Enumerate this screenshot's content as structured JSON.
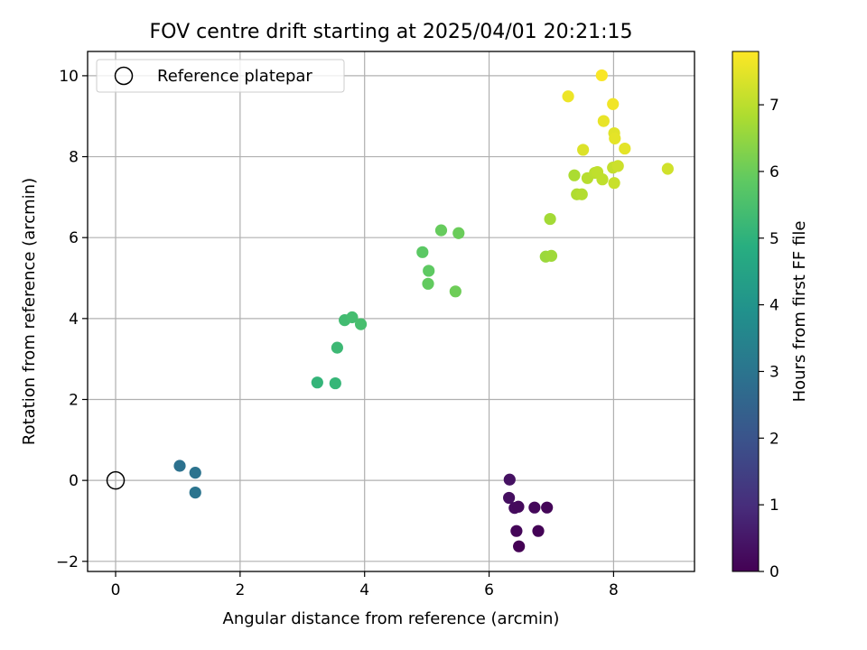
{
  "chart_data": {
    "type": "scatter",
    "title": "FOV centre drift starting at 2025/04/01 20:21:15",
    "xlabel": "Angular distance from reference (arcmin)",
    "ylabel": "Rotation from reference (arcmin)",
    "xlim": [
      -0.45,
      9.3
    ],
    "ylim": [
      -2.25,
      10.6
    ],
    "x_ticks": [
      0,
      2,
      4,
      6,
      8
    ],
    "y_ticks": [
      -2,
      0,
      2,
      4,
      6,
      8,
      10
    ],
    "grid": true,
    "legend": {
      "position": "top-left",
      "entries": [
        "Reference platepar"
      ]
    },
    "reference": {
      "name": "Reference platepar",
      "x": 0,
      "y": 0
    },
    "colorbar": {
      "label": "Hours from first FF file",
      "colormap": "viridis",
      "range": [
        0,
        7.8
      ],
      "ticks": [
        0,
        1,
        2,
        3,
        4,
        5,
        6,
        7
      ]
    },
    "points": [
      {
        "x": 6.33,
        "y": 0.02,
        "hours": 0.35
      },
      {
        "x": 6.32,
        "y": -0.43,
        "hours": 0.3
      },
      {
        "x": 6.41,
        "y": -0.68,
        "hours": 0.25
      },
      {
        "x": 6.47,
        "y": -0.65,
        "hours": 0.2
      },
      {
        "x": 6.73,
        "y": -0.67,
        "hours": 0.15
      },
      {
        "x": 6.93,
        "y": -0.67,
        "hours": 0.1
      },
      {
        "x": 6.44,
        "y": -1.25,
        "hours": 0.1
      },
      {
        "x": 6.79,
        "y": -1.25,
        "hours": 0.05
      },
      {
        "x": 6.48,
        "y": -1.63,
        "hours": 0.0
      },
      {
        "x": 1.03,
        "y": 0.36,
        "hours": 2.9
      },
      {
        "x": 1.28,
        "y": 0.19,
        "hours": 2.95
      },
      {
        "x": 1.28,
        "y": -0.3,
        "hours": 3.0
      },
      {
        "x": 3.24,
        "y": 2.42,
        "hours": 5.1
      },
      {
        "x": 3.53,
        "y": 2.4,
        "hours": 5.15
      },
      {
        "x": 3.56,
        "y": 3.28,
        "hours": 5.25
      },
      {
        "x": 3.68,
        "y": 3.96,
        "hours": 5.35
      },
      {
        "x": 3.8,
        "y": 4.03,
        "hours": 5.4
      },
      {
        "x": 3.94,
        "y": 3.86,
        "hours": 5.45
      },
      {
        "x": 4.93,
        "y": 5.64,
        "hours": 5.8
      },
      {
        "x": 5.03,
        "y": 5.18,
        "hours": 5.85
      },
      {
        "x": 5.02,
        "y": 4.86,
        "hours": 5.9
      },
      {
        "x": 5.23,
        "y": 6.18,
        "hours": 5.95
      },
      {
        "x": 5.51,
        "y": 6.11,
        "hours": 6.0
      },
      {
        "x": 5.46,
        "y": 4.67,
        "hours": 6.05
      },
      {
        "x": 6.91,
        "y": 5.53,
        "hours": 6.6
      },
      {
        "x": 7.0,
        "y": 5.55,
        "hours": 6.65
      },
      {
        "x": 6.98,
        "y": 6.46,
        "hours": 6.7
      },
      {
        "x": 7.37,
        "y": 7.54,
        "hours": 6.8
      },
      {
        "x": 7.41,
        "y": 7.07,
        "hours": 6.85
      },
      {
        "x": 7.49,
        "y": 7.07,
        "hours": 6.9
      },
      {
        "x": 7.58,
        "y": 7.47,
        "hours": 6.95
      },
      {
        "x": 7.7,
        "y": 7.6,
        "hours": 7.0
      },
      {
        "x": 7.74,
        "y": 7.62,
        "hours": 7.05
      },
      {
        "x": 7.82,
        "y": 7.44,
        "hours": 7.05
      },
      {
        "x": 7.99,
        "y": 7.73,
        "hours": 7.1
      },
      {
        "x": 8.01,
        "y": 7.35,
        "hours": 7.15
      },
      {
        "x": 8.07,
        "y": 7.77,
        "hours": 7.2
      },
      {
        "x": 8.87,
        "y": 7.7,
        "hours": 7.25
      },
      {
        "x": 7.51,
        "y": 8.17,
        "hours": 7.4
      },
      {
        "x": 8.01,
        "y": 8.58,
        "hours": 7.45
      },
      {
        "x": 8.02,
        "y": 8.45,
        "hours": 7.5
      },
      {
        "x": 8.18,
        "y": 8.2,
        "hours": 7.5
      },
      {
        "x": 7.84,
        "y": 8.88,
        "hours": 7.55
      },
      {
        "x": 7.27,
        "y": 9.49,
        "hours": 7.6
      },
      {
        "x": 7.99,
        "y": 9.3,
        "hours": 7.65
      },
      {
        "x": 7.81,
        "y": 10.01,
        "hours": 7.75
      }
    ]
  }
}
